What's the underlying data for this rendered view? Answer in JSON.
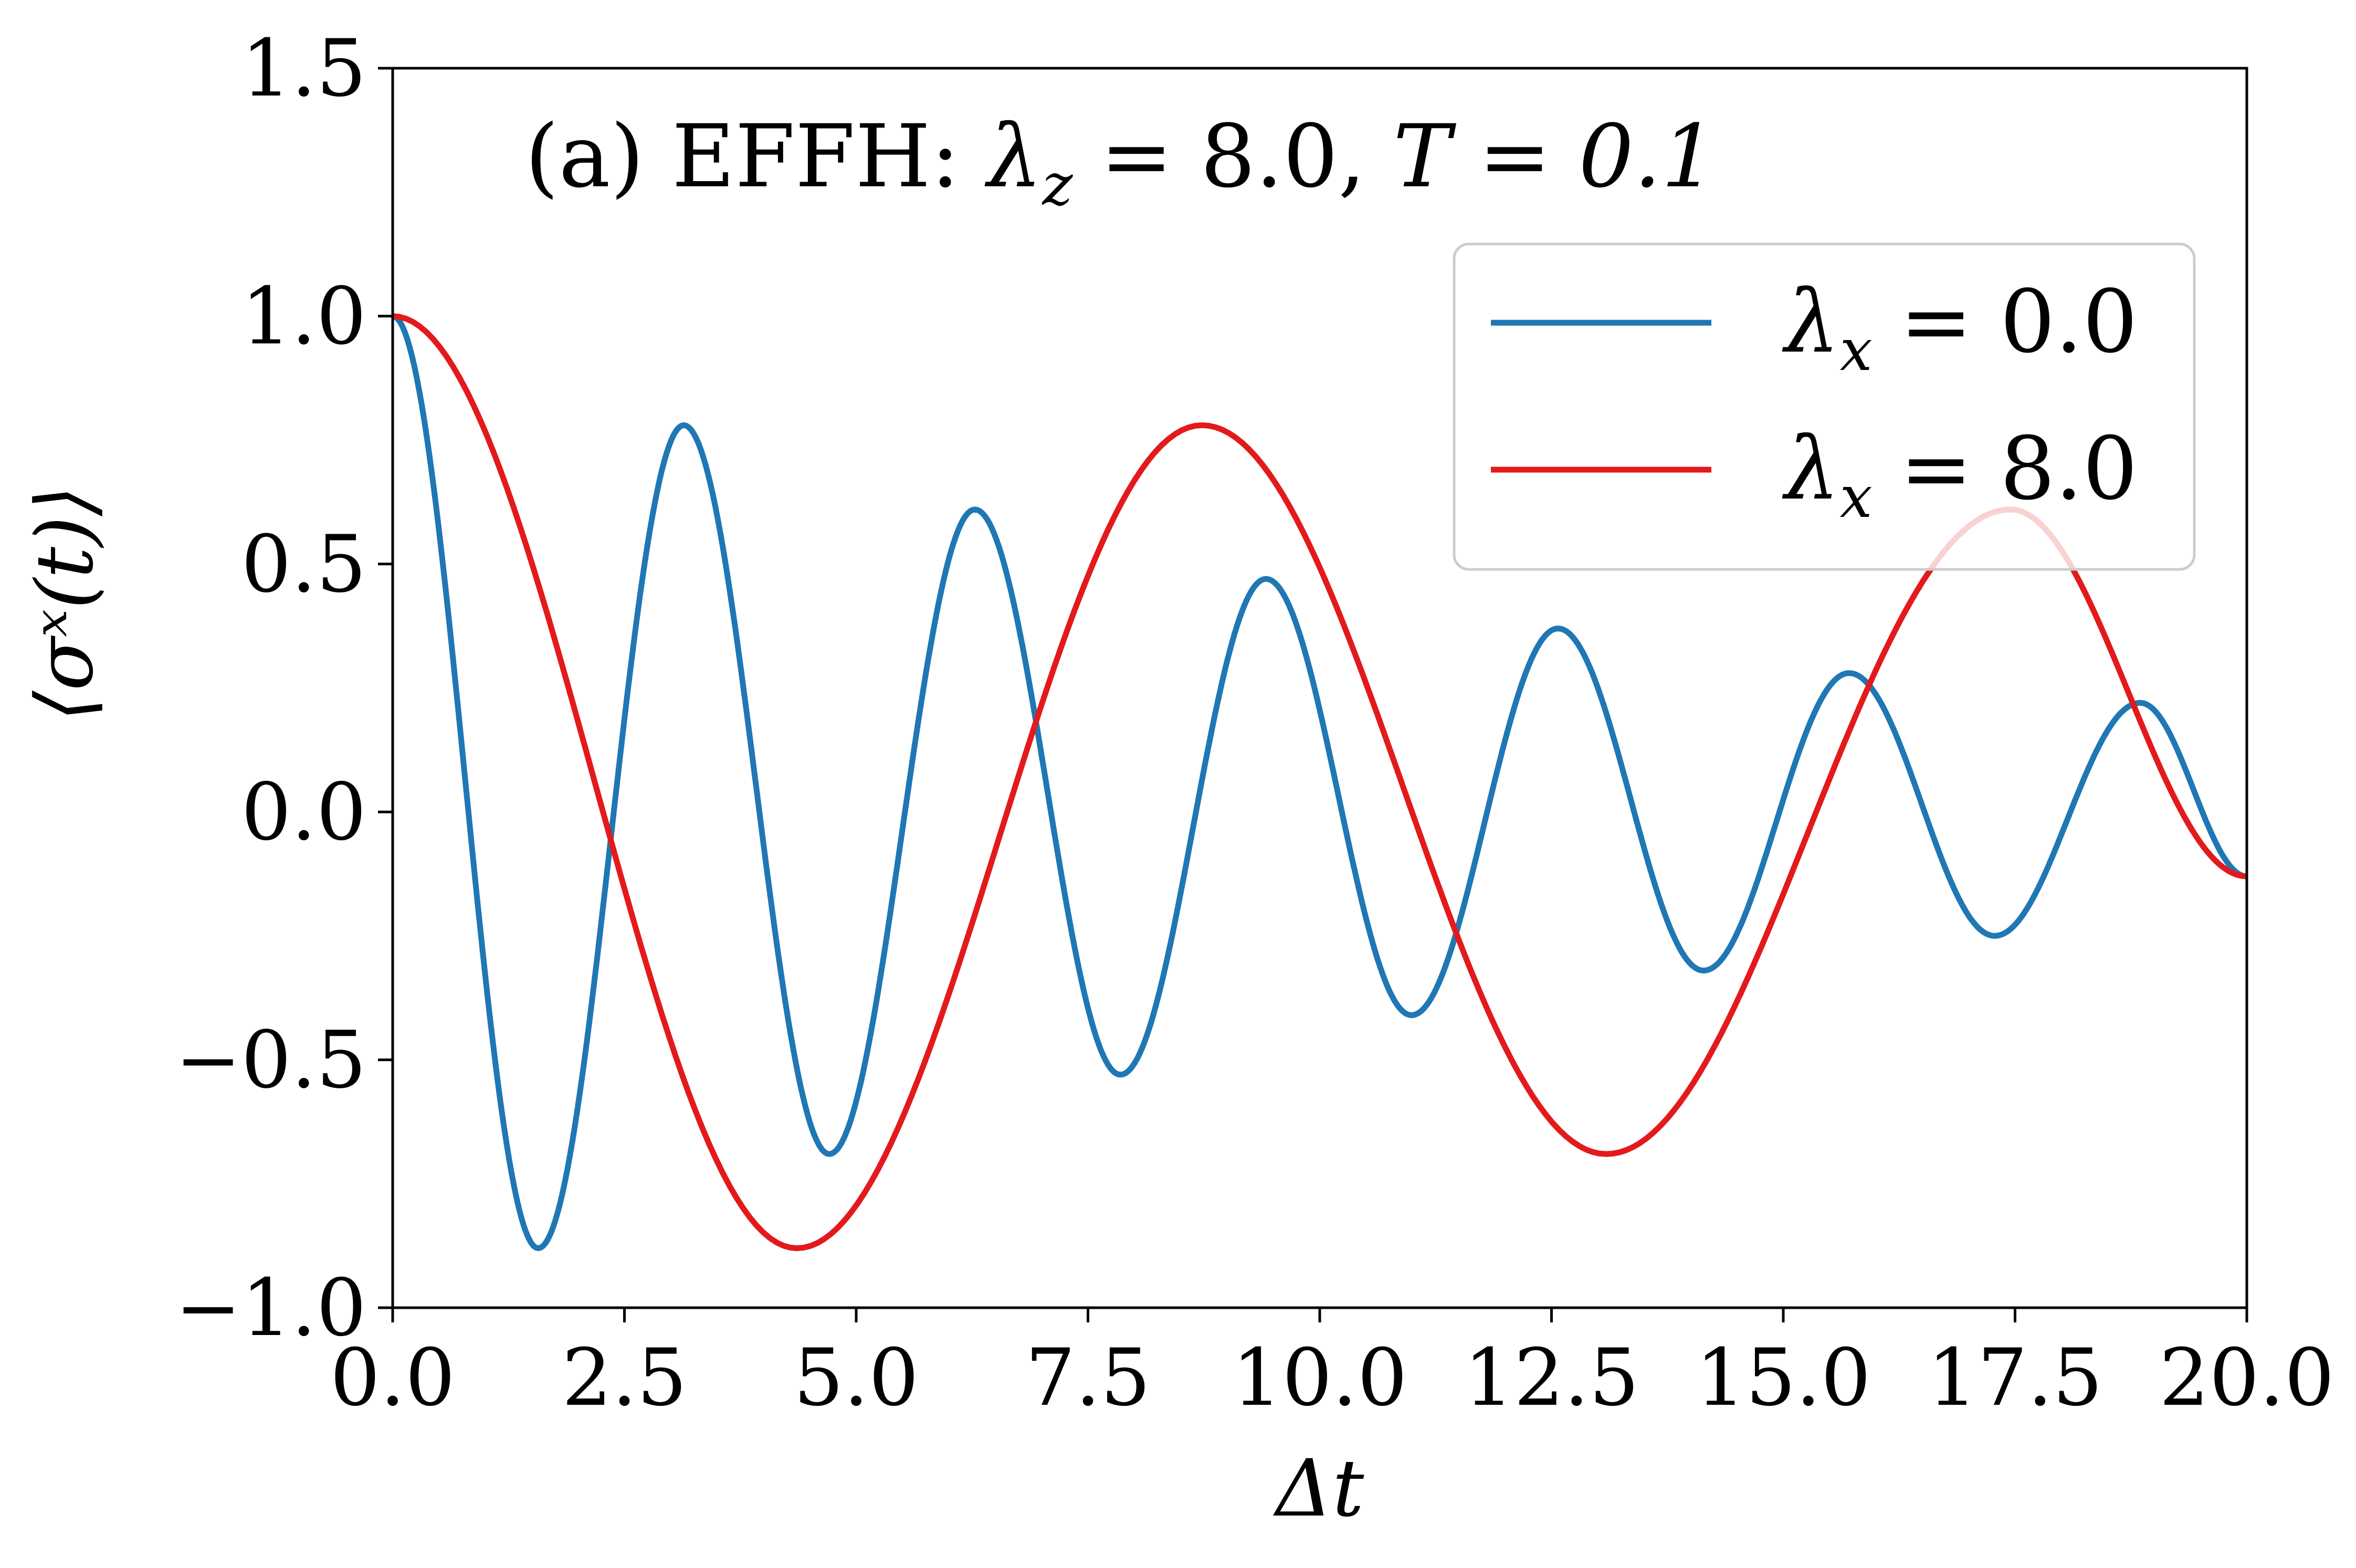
{
  "chart_data": {
    "type": "line",
    "title": "",
    "annotation": {
      "prefix": "(a) EFFH: ",
      "lambda_symbol": "λ",
      "lambda_sub": "z",
      "lambda_value": " = 8.0, ",
      "T_text": "T = 0.1"
    },
    "xlabel": "Δt",
    "ylabel": "⟨σˣ(t)⟩",
    "xlim": [
      0,
      20
    ],
    "ylim": [
      -1.0,
      1.5
    ],
    "xticks": [
      0,
      2.5,
      5,
      7.5,
      10,
      12.5,
      15,
      17.5,
      20
    ],
    "xtick_labels": [
      "0.0",
      "2.5",
      "5.0",
      "7.5",
      "10.0",
      "12.5",
      "15.0",
      "17.5",
      "20.0"
    ],
    "yticks": [
      -1.0,
      -0.5,
      0.0,
      0.5,
      1.0,
      1.5
    ],
    "ytick_labels": [
      "−1.0",
      "−0.5",
      "0.0",
      "0.5",
      "1.0",
      "1.5"
    ],
    "grid": false,
    "legend_position": "upper-right",
    "series": [
      {
        "name": "λx = 0.0",
        "legend_symbol": "λ",
        "legend_sub": "x",
        "legend_value": " = 0.0",
        "color": "#1f77b4",
        "x": [
          0.0,
          1.57,
          3.14,
          4.71,
          6.28,
          7.85,
          9.42,
          10.99,
          12.57,
          14.14,
          15.71,
          17.28,
          18.85,
          20.0
        ],
        "y": [
          1.0,
          -0.88,
          0.78,
          -0.69,
          0.61,
          -0.53,
          0.47,
          -0.41,
          0.37,
          -0.32,
          0.28,
          -0.25,
          0.22,
          -0.13
        ]
      },
      {
        "name": "λx = 8.0",
        "legend_symbol": "λ",
        "legend_sub": "x",
        "legend_value": " = 8.0",
        "color": "#e31a1c",
        "x": [
          0.0,
          4.36,
          8.73,
          13.09,
          17.45,
          20.0
        ],
        "y": [
          1.0,
          -0.88,
          0.78,
          -0.69,
          0.61,
          -0.13
        ]
      }
    ]
  }
}
